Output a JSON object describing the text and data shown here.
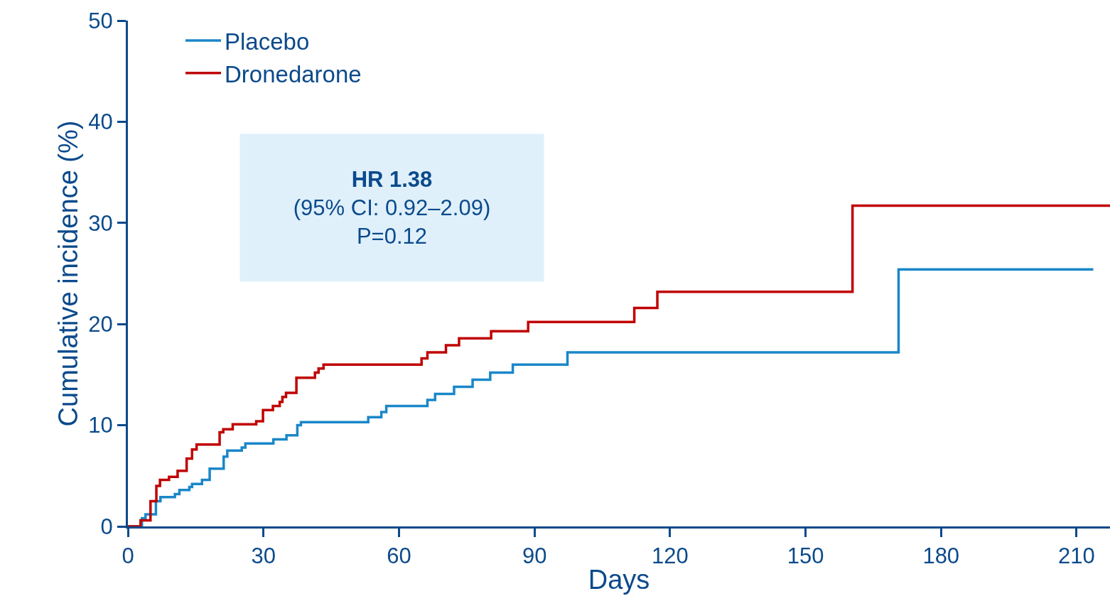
{
  "chart_data": {
    "type": "step",
    "xlabel": "Days",
    "ylabel": "Cumulative incidence (%)",
    "xlim": [
      0,
      217.4
    ],
    "xticks": [
      0,
      30,
      60,
      90,
      120,
      150,
      180,
      210
    ],
    "ylim": [
      0,
      50
    ],
    "yticks": [
      0,
      10,
      20,
      30,
      40,
      50
    ],
    "legend": "top left",
    "marker": "none",
    "line_style": "solid",
    "annotations": [
      "HR 1.38",
      "(95% CI: 0.92–2.09)",
      "P=0.12"
    ],
    "series": [
      {
        "name": "Placebo",
        "color": "#1a87c9",
        "x": [
          0,
          3.1,
          3.9,
          6.2,
          7.2,
          10.4,
          11.4,
          13.6,
          14.2,
          16.4,
          18.1,
          21.2,
          22.0,
          25.2,
          26.0,
          32.2,
          35.1,
          37.5,
          38.3,
          53.2,
          56.1,
          57.2,
          66.3,
          68.0,
          72.2,
          76.3,
          80.2,
          85.2,
          97.3,
          170.6,
          213.7
        ],
        "values": [
          0,
          0.8,
          1.2,
          2.5,
          2.9,
          3.2,
          3.6,
          3.9,
          4.2,
          4.6,
          5.7,
          6.9,
          7.5,
          7.8,
          8.2,
          8.6,
          9.0,
          10.0,
          10.3,
          10.8,
          11.3,
          11.9,
          12.5,
          13.1,
          13.8,
          14.5,
          15.2,
          16.0,
          17.2,
          25.4,
          25.4
        ]
      },
      {
        "name": "Dronedarone",
        "color": "#c00000",
        "x": [
          0,
          2.8,
          5.0,
          6.3,
          7.1,
          9.1,
          11.0,
          13.0,
          14.2,
          15.2,
          20.3,
          21.1,
          23.2,
          28.4,
          29.9,
          32.1,
          33.6,
          34.2,
          35.0,
          37.3,
          41.4,
          42.2,
          43.3,
          65.0,
          66.3,
          70.4,
          73.3,
          80.4,
          88.6,
          112.1,
          117.2,
          160.4,
          217.4
        ],
        "values": [
          0,
          0.6,
          2.5,
          4.0,
          4.6,
          4.9,
          5.5,
          6.7,
          7.6,
          8.1,
          9.3,
          9.6,
          10.1,
          10.4,
          11.5,
          11.9,
          12.3,
          12.8,
          13.2,
          14.7,
          15.2,
          15.6,
          16.0,
          16.6,
          17.2,
          17.9,
          18.6,
          19.3,
          20.2,
          21.6,
          23.2,
          31.7,
          31.7
        ]
      }
    ]
  }
}
